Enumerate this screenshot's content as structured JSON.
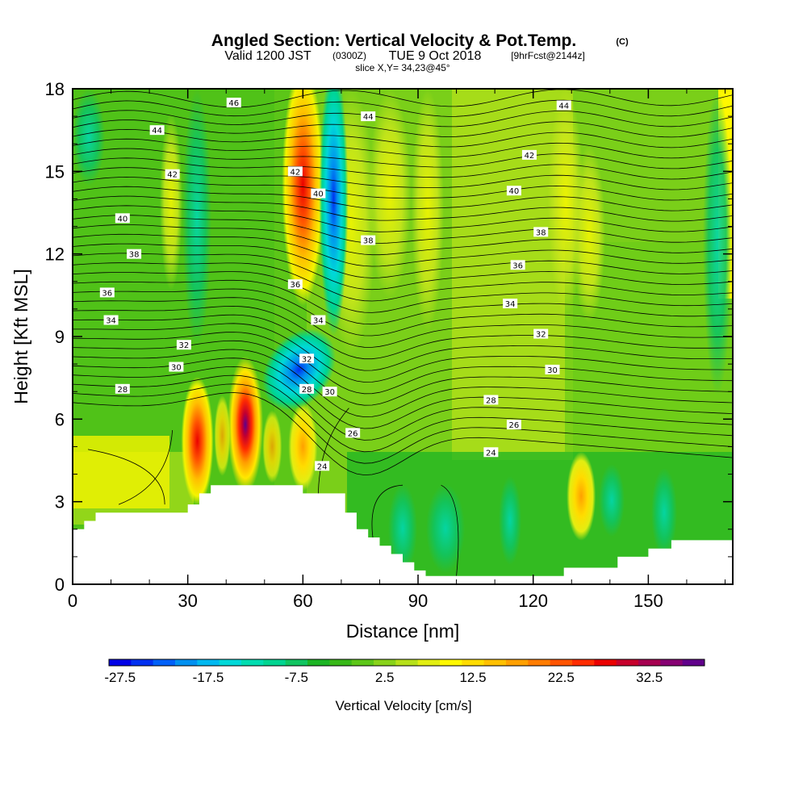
{
  "header": {
    "title_main": "Angled Section: Vertical Velocity & Pot.Temp.",
    "title_tag": "(C)",
    "valid_prefix": "Valid 1200 JST",
    "valid_zulu": "(0300Z)",
    "valid_date": "TUE 9 Oct 2018",
    "valid_fcst": "[9hrFcst@2144z]",
    "slice": "slice X,Y= 34,23@45°"
  },
  "chart_data": {
    "type": "heatmap",
    "title": "Angled Section: Vertical Velocity & Pot.Temp.",
    "xlabel": "Distance [nm]",
    "ylabel": "Height [Kft MSL]",
    "xlim": [
      0,
      172
    ],
    "ylim": [
      0,
      18
    ],
    "xticks": [
      0,
      30,
      60,
      90,
      120,
      150
    ],
    "xtick_labels": [
      "0",
      "30",
      "60",
      "90",
      "120",
      "150"
    ],
    "yticks": [
      0,
      3,
      6,
      9,
      12,
      15,
      18
    ],
    "ytick_labels": [
      "0",
      "3",
      "6",
      "9",
      "12",
      "15",
      "18"
    ],
    "terrain": {
      "x": [
        0,
        3,
        3,
        6,
        6,
        30,
        30,
        33,
        33,
        36,
        36,
        60,
        60,
        71,
        71,
        74,
        74,
        77,
        77,
        80,
        80,
        83,
        83,
        86,
        86,
        89,
        89,
        92,
        92,
        95,
        95,
        98,
        98,
        100,
        100,
        102,
        102,
        104,
        104,
        117,
        117,
        122,
        122,
        128,
        128,
        134,
        134,
        142,
        142,
        148,
        148,
        150,
        150,
        156,
        156,
        162,
        162,
        172
      ],
      "y": [
        2,
        2,
        2.3,
        2.3,
        2.6,
        2.6,
        2.9,
        2.9,
        3.3,
        3.3,
        3.6,
        3.6,
        3.3,
        3.3,
        2.6,
        2.6,
        2.0,
        2.0,
        1.7,
        1.7,
        1.4,
        1.4,
        1.1,
        1.1,
        0.8,
        0.8,
        0.5,
        0.5,
        0.3,
        0.3,
        0.3,
        0.3,
        0.3,
        0.3,
        0.3,
        0.3,
        0.3,
        0.3,
        0.3,
        0.3,
        0.3,
        0.3,
        0.3,
        0.3,
        0.6,
        0.6,
        0.6,
        0.6,
        1.0,
        1.0,
        1.0,
        1.0,
        1.3,
        1.3,
        1.6,
        1.6,
        1.6,
        1.6
      ]
    },
    "theta_contours": [
      {
        "level": 24,
        "label": "24"
      },
      {
        "level": 26,
        "label": "26"
      },
      {
        "level": 28,
        "label": "28"
      },
      {
        "level": 30,
        "label": "30"
      },
      {
        "level": 32,
        "label": "32"
      },
      {
        "level": 34,
        "label": "34"
      },
      {
        "level": 36,
        "label": "36"
      },
      {
        "level": 38,
        "label": "38"
      },
      {
        "level": 40,
        "label": "40"
      },
      {
        "level": 42,
        "label": "42"
      },
      {
        "level": 44,
        "label": "44"
      },
      {
        "level": 46,
        "label": "46"
      }
    ],
    "contour_labels": [
      {
        "text": "46",
        "x": 42,
        "y": 17.5
      },
      {
        "text": "44",
        "x": 22,
        "y": 16.5
      },
      {
        "text": "44",
        "x": 77,
        "y": 17.0
      },
      {
        "text": "44",
        "x": 128,
        "y": 17.4
      },
      {
        "text": "42",
        "x": 26,
        "y": 14.9
      },
      {
        "text": "42",
        "x": 58,
        "y": 15.0
      },
      {
        "text": "42",
        "x": 119,
        "y": 15.6
      },
      {
        "text": "40",
        "x": 13,
        "y": 13.3
      },
      {
        "text": "40",
        "x": 64,
        "y": 14.2
      },
      {
        "text": "40",
        "x": 115,
        "y": 14.3
      },
      {
        "text": "38",
        "x": 16,
        "y": 12.0
      },
      {
        "text": "38",
        "x": 77,
        "y": 12.5
      },
      {
        "text": "38",
        "x": 122,
        "y": 12.8
      },
      {
        "text": "36",
        "x": 9,
        "y": 10.6
      },
      {
        "text": "36",
        "x": 58,
        "y": 10.9
      },
      {
        "text": "36",
        "x": 116,
        "y": 11.6
      },
      {
        "text": "34",
        "x": 10,
        "y": 9.6
      },
      {
        "text": "34",
        "x": 64,
        "y": 9.6
      },
      {
        "text": "34",
        "x": 114,
        "y": 10.2
      },
      {
        "text": "32",
        "x": 29,
        "y": 8.7
      },
      {
        "text": "32",
        "x": 61,
        "y": 8.2
      },
      {
        "text": "32",
        "x": 122,
        "y": 9.1
      },
      {
        "text": "30",
        "x": 27,
        "y": 7.9
      },
      {
        "text": "30",
        "x": 67,
        "y": 7.0
      },
      {
        "text": "30",
        "x": 125,
        "y": 7.8
      },
      {
        "text": "28",
        "x": 13,
        "y": 7.1
      },
      {
        "text": "28",
        "x": 61,
        "y": 7.1
      },
      {
        "text": "28",
        "x": 109,
        "y": 6.7
      },
      {
        "text": "26",
        "x": 73,
        "y": 5.5
      },
      {
        "text": "26",
        "x": 115,
        "y": 5.8
      },
      {
        "text": "24",
        "x": 65,
        "y": 4.3
      },
      {
        "text": "24",
        "x": 109,
        "y": 4.8
      }
    ],
    "features": [
      {
        "kind": "updraft",
        "x": 32.5,
        "y": 5.2,
        "peak": 28
      },
      {
        "kind": "updraft",
        "x": 45,
        "y": 5.8,
        "peak": 36
      },
      {
        "kind": "updraft",
        "x": 60,
        "y": 5.0,
        "peak": 18
      },
      {
        "kind": "updraft",
        "x": 60,
        "y": 14.5,
        "peak": 26
      },
      {
        "kind": "updraft",
        "x": 132.5,
        "y": 3.2,
        "peak": 14
      },
      {
        "kind": "downdraft",
        "x": 68,
        "y": 14.0,
        "peak": -20
      },
      {
        "kind": "downdraft",
        "x": 59,
        "y": 7.8,
        "peak": -24
      }
    ],
    "colorbar": {
      "label": "Vertical Velocity [cm/s]",
      "min": -27.5,
      "step": 2.5,
      "tick_labels": [
        "-27.5",
        "-17.5",
        "-7.5",
        "2.5",
        "12.5",
        "22.5",
        "32.5"
      ],
      "colors": [
        "#0000e6",
        "#0030f0",
        "#0060f8",
        "#0090f0",
        "#00b8f0",
        "#00d8d8",
        "#00dcb0",
        "#00d490",
        "#10c460",
        "#1cb424",
        "#38b818",
        "#5cc618",
        "#88d21a",
        "#b6e01a",
        "#e2ee12",
        "#fff800",
        "#ffdc00",
        "#ffc000",
        "#ffa000",
        "#ff7c00",
        "#ff5400",
        "#ff2c00",
        "#ea0000",
        "#c6002c",
        "#a60050",
        "#860072",
        "#60008a"
      ]
    }
  }
}
